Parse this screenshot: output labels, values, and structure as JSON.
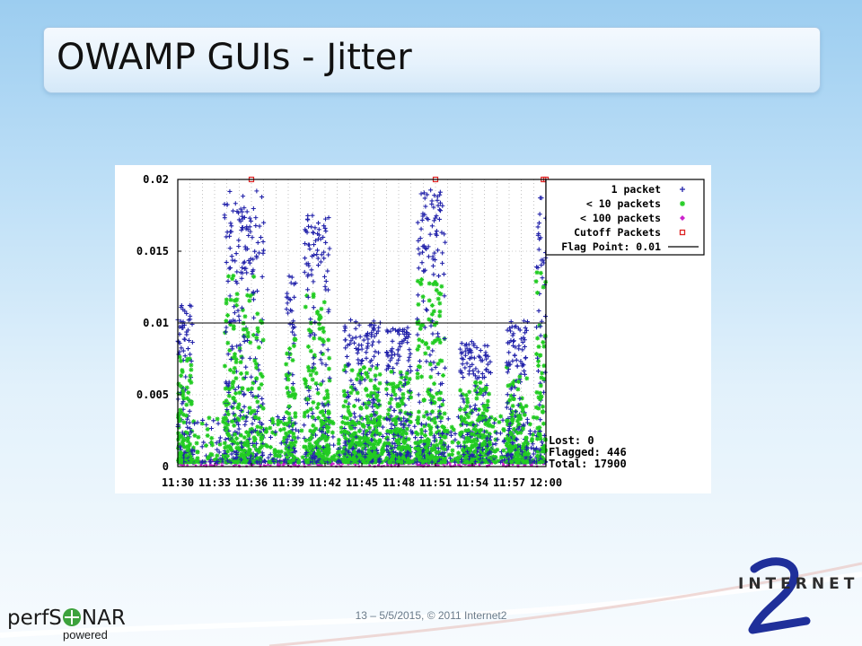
{
  "slide": {
    "title": "OWAMP GUIs - Jitter",
    "footer": "13 – 5/5/2015, © 2011 Internet2"
  },
  "logos": {
    "perfsonar_brand": "perfS",
    "perfsonar_brand_end": "NAR",
    "perfsonar_powered": "powered",
    "internet2_word": "INTERNET",
    "internet2_numeral": "2"
  },
  "chart_data": {
    "type": "scatter",
    "x_tick_labels": [
      "11:30",
      "11:33",
      "11:36",
      "11:39",
      "11:42",
      "11:45",
      "11:48",
      "11:51",
      "11:54",
      "11:57",
      "12:00"
    ],
    "y_tick_labels": [
      "0.02",
      "0.015",
      "0.01",
      "0.005",
      "0"
    ],
    "ylim": [
      0,
      0.02
    ],
    "grid": true,
    "legend_position": "top-right",
    "legend": [
      {
        "label": "1 packet",
        "marker": "+",
        "color": "#2222aa"
      },
      {
        "label": "< 10 packets",
        "marker": "*",
        "color": "#22cc22"
      },
      {
        "label": "< 100 packets",
        "marker": "diamond",
        "color": "#cc22cc"
      },
      {
        "label": "Cutoff Packets",
        "marker": "square",
        "color": "#dd2222"
      },
      {
        "label": "Flag Point: 0.01",
        "marker": "line",
        "color": "#000000"
      }
    ],
    "flag_point": 0.01,
    "stats": {
      "lost": "Lost: 0",
      "flagged": "Flagged: 446",
      "total": "Total: 17900"
    },
    "cutoff_points_minutes": [
      36,
      51,
      59.8,
      60
    ],
    "burst_regions": [
      {
        "x_min": 30.0,
        "x_max": 31.2,
        "peak": 0.011
      },
      {
        "x_min": 33.8,
        "x_max": 37.0,
        "peak": 0.019
      },
      {
        "x_min": 38.8,
        "x_max": 39.6,
        "peak": 0.013
      },
      {
        "x_min": 40.3,
        "x_max": 42.4,
        "peak": 0.0175
      },
      {
        "x_min": 43.5,
        "x_max": 46.5,
        "peak": 0.01
      },
      {
        "x_min": 47.0,
        "x_max": 49.0,
        "peak": 0.0095
      },
      {
        "x_min": 49.5,
        "x_max": 51.8,
        "peak": 0.019
      },
      {
        "x_min": 53.0,
        "x_max": 55.5,
        "peak": 0.0085
      },
      {
        "x_min": 56.8,
        "x_max": 58.5,
        "peak": 0.01
      },
      {
        "x_min": 59.2,
        "x_max": 60.0,
        "peak": 0.0195
      }
    ]
  }
}
